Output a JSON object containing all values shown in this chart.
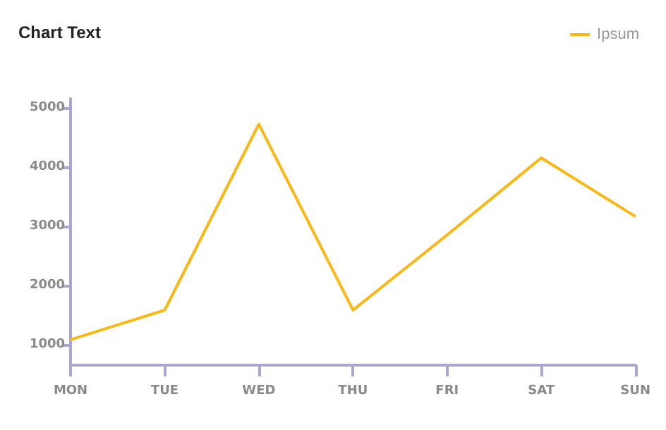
{
  "chart_data": {
    "type": "line",
    "title": "Chart Text",
    "categories": [
      "MON",
      "TUE",
      "WED",
      "THU",
      "FRI",
      "SAT",
      "SUN"
    ],
    "series": [
      {
        "name": "Ipsum",
        "color": "#fbb714",
        "values": [
          1080,
          1580,
          4720,
          1580,
          2850,
          4150,
          3160
        ]
      }
    ],
    "ylim": [
      650,
      5150
    ],
    "yticks": [
      1000,
      2000,
      3000,
      4000,
      5000
    ],
    "grid": false,
    "legend": "top right",
    "marker": "none",
    "line_style": "solid"
  }
}
